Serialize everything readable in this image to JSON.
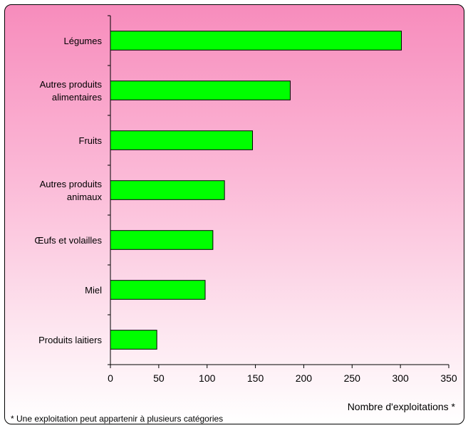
{
  "chart_data": {
    "type": "bar",
    "orientation": "horizontal",
    "categories": [
      "Légumes",
      "Autres produits alimentaires",
      "Fruits",
      "Autres produits animaux",
      "Œufs et volailles",
      "Miel",
      "Produits laitiers"
    ],
    "category_lines": [
      [
        "Légumes"
      ],
      [
        "Autres produits",
        "alimentaires"
      ],
      [
        "Fruits"
      ],
      [
        "Autres produits",
        "animaux"
      ],
      [
        "Œufs et volailles"
      ],
      [
        "Miel"
      ],
      [
        "Produits laitiers"
      ]
    ],
    "values": [
      301,
      186,
      147,
      118,
      106,
      98,
      48
    ],
    "xlim": [
      0,
      350
    ],
    "xticks": [
      0,
      50,
      100,
      150,
      200,
      250,
      300,
      350
    ],
    "xlabel": "Nombre d'exploitations *",
    "ylabel": "",
    "title": "",
    "bar_color": "#00ff00",
    "bar_edge_color": "#000000",
    "grid": false,
    "footnote": "* Une exploitation peut appartenir à plusieurs catégories"
  }
}
